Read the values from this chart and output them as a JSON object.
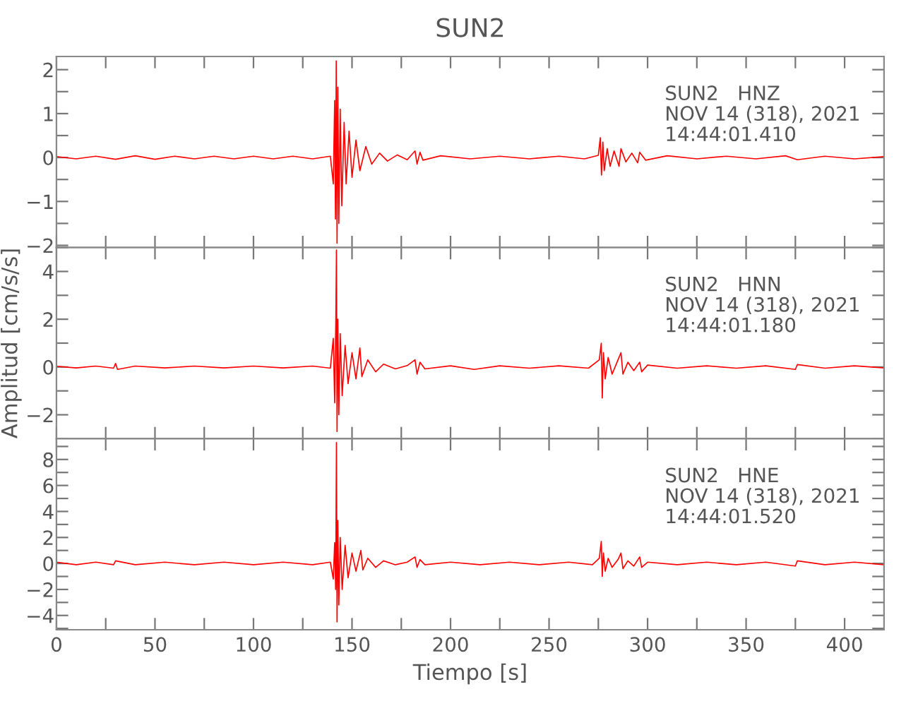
{
  "chart_data": [
    {
      "type": "line",
      "title": "SUN2",
      "annotations": [
        "SUN2   HNZ\nNOV 14 (318), 2021\n14:44:01.410"
      ],
      "tick_labels": "y",
      "marker": "none",
      "line_style": "solid",
      "xlim": [
        0,
        420
      ],
      "xticks": [
        {
          "value": 0,
          "label": null
        },
        {
          "value": 25,
          "label": null
        },
        {
          "value": 50,
          "label": null
        },
        {
          "value": 75,
          "label": null
        },
        {
          "value": 100,
          "label": null
        },
        {
          "value": 125,
          "label": null
        },
        {
          "value": 150,
          "label": null
        },
        {
          "value": 175,
          "label": null
        },
        {
          "value": 200,
          "label": null
        },
        {
          "value": 225,
          "label": null
        },
        {
          "value": 250,
          "label": null
        },
        {
          "value": 275,
          "label": null
        },
        {
          "value": 300,
          "label": null
        },
        {
          "value": 325,
          "label": null
        },
        {
          "value": 350,
          "label": null
        },
        {
          "value": 375,
          "label": null
        },
        {
          "value": 400,
          "label": null
        }
      ],
      "ylim": [
        -2.05,
        2.3
      ],
      "yticks": [
        {
          "value": -2,
          "label": "−2"
        },
        {
          "value": -1.5,
          "label": null
        },
        {
          "value": -1,
          "label": "−1"
        },
        {
          "value": -0.5,
          "label": null
        },
        0,
        {
          "value": 0.5,
          "label": null
        },
        1,
        {
          "value": 1.5,
          "label": null
        },
        2
      ],
      "series": [
        {
          "color": "#ff0000",
          "x": [
            0,
            10,
            20,
            30,
            40,
            50,
            60,
            70,
            80,
            90,
            100,
            110,
            120,
            130,
            139,
            140.5,
            141.2,
            141.6,
            142.0,
            142.4,
            142.8,
            143.3,
            144,
            144.8,
            146,
            147,
            148.5,
            150,
            152,
            154,
            157,
            160,
            164,
            168,
            173,
            178,
            182,
            183,
            184.5,
            186,
            195,
            210,
            225,
            240,
            255,
            268,
            275,
            276,
            276.6,
            277.3,
            278,
            279.5,
            281,
            283,
            285.5,
            286.5,
            289,
            292,
            295,
            296,
            299,
            310,
            325,
            340,
            355,
            370,
            376,
            390,
            405,
            420
          ],
          "values": [
            0.02,
            -0.03,
            0.03,
            -0.04,
            0.04,
            -0.04,
            0.03,
            -0.03,
            0.03,
            -0.03,
            0.03,
            -0.03,
            0.03,
            -0.03,
            0.03,
            -0.6,
            1.3,
            -1.4,
            2.2,
            -1.95,
            1.6,
            -1.5,
            1.1,
            -1.1,
            0.8,
            -0.6,
            0.6,
            -0.45,
            0.4,
            -0.3,
            0.25,
            -0.15,
            0.1,
            -0.08,
            0.06,
            -0.05,
            0.15,
            -0.15,
            0.12,
            -0.06,
            0.04,
            -0.03,
            0.03,
            -0.03,
            0.03,
            -0.03,
            0.05,
            0.45,
            -0.4,
            0.35,
            -0.3,
            0.2,
            -0.2,
            0.15,
            -0.2,
            0.2,
            -0.1,
            0.1,
            -0.12,
            0.12,
            -0.06,
            0.04,
            -0.03,
            0.03,
            -0.03,
            0.04,
            -0.05,
            0.03,
            -0.03,
            0.02
          ]
        }
      ]
    },
    {
      "type": "line",
      "ylabel": "Amplitud [cm/s/s]",
      "annotations": [
        "SUN2   HNN\nNOV 14 (318), 2021\n14:44:01.180"
      ],
      "tick_labels": "y",
      "marker": "none",
      "line_style": "solid",
      "xlim": [
        0,
        420
      ],
      "xticks": [
        {
          "value": 0,
          "label": null
        },
        {
          "value": 25,
          "label": null
        },
        {
          "value": 50,
          "label": null
        },
        {
          "value": 75,
          "label": null
        },
        {
          "value": 100,
          "label": null
        },
        {
          "value": 125,
          "label": null
        },
        {
          "value": 150,
          "label": null
        },
        {
          "value": 175,
          "label": null
        },
        {
          "value": 200,
          "label": null
        },
        {
          "value": 225,
          "label": null
        },
        {
          "value": 250,
          "label": null
        },
        {
          "value": 275,
          "label": null
        },
        {
          "value": 300,
          "label": null
        },
        {
          "value": 325,
          "label": null
        },
        {
          "value": 350,
          "label": null
        },
        {
          "value": 375,
          "label": null
        },
        {
          "value": 400,
          "label": null
        }
      ],
      "ylim": [
        -3,
        5
      ],
      "yticks": [
        {
          "value": -3,
          "label": null
        },
        {
          "value": -2,
          "label": "−2"
        },
        {
          "value": -1,
          "label": null
        },
        0,
        {
          "value": 1,
          "label": null
        },
        2,
        {
          "value": 3,
          "label": null
        },
        4,
        {
          "value": 5,
          "label": null
        }
      ],
      "series": [
        {
          "color": "#ff0000",
          "x": [
            0,
            10,
            20,
            29,
            30,
            31,
            40,
            55,
            70,
            85,
            100,
            115,
            130,
            139,
            140.5,
            141.2,
            141.8,
            142.1,
            142.4,
            142.8,
            143.3,
            144,
            145,
            146.5,
            148,
            150,
            152,
            154,
            155,
            158,
            162,
            166,
            172,
            178,
            182,
            183,
            184.5,
            187,
            200,
            212,
            225,
            240,
            255,
            270,
            275.5,
            276.5,
            277,
            277.6,
            278.5,
            280,
            282,
            285,
            286.5,
            287.5,
            290,
            293,
            296,
            297,
            300,
            315,
            330,
            345,
            360,
            375,
            376,
            390,
            405,
            420
          ],
          "values": [
            0.03,
            -0.04,
            0.04,
            -0.05,
            0.15,
            -0.1,
            0.04,
            -0.04,
            0.04,
            -0.04,
            0.04,
            -0.04,
            0.04,
            -0.05,
            1.2,
            -1.5,
            2.0,
            4.9,
            -2.7,
            2.0,
            -2.0,
            1.4,
            -1.2,
            0.9,
            -0.7,
            0.6,
            -0.5,
            0.8,
            -0.4,
            0.3,
            -0.2,
            0.12,
            -0.08,
            0.06,
            0.3,
            -0.3,
            0.2,
            -0.08,
            0.05,
            -0.1,
            0.05,
            -0.05,
            0.05,
            -0.05,
            0.3,
            1.0,
            -1.3,
            0.6,
            -0.5,
            0.4,
            -0.3,
            0.3,
            0.6,
            -0.3,
            0.2,
            -0.15,
            0.2,
            -0.2,
            0.08,
            -0.05,
            0.05,
            -0.05,
            0.05,
            -0.1,
            0.1,
            -0.05,
            0.05,
            -0.04
          ]
        }
      ]
    },
    {
      "type": "line",
      "xlabel": "Tiempo [s]",
      "annotations": [
        "SUN2   HNE\nNOV 14 (318), 2021\n14:44:01.520"
      ],
      "marker": "none",
      "line_style": "solid",
      "xlim": [
        0,
        420
      ],
      "xticks": [
        0,
        {
          "value": 25,
          "label": null
        },
        50,
        {
          "value": 75,
          "label": null
        },
        100,
        {
          "value": 125,
          "label": null
        },
        150,
        {
          "value": 175,
          "label": null
        },
        200,
        {
          "value": 225,
          "label": null
        },
        250,
        {
          "value": 275,
          "label": null
        },
        300,
        {
          "value": 325,
          "label": null
        },
        350,
        {
          "value": 375,
          "label": null
        },
        400
      ],
      "ylim": [
        -5.1,
        9.6
      ],
      "yticks": [
        {
          "value": -5,
          "label": null
        },
        {
          "value": -4,
          "label": "−4"
        },
        {
          "value": -3,
          "label": null
        },
        {
          "value": -2,
          "label": "−2"
        },
        {
          "value": -1,
          "label": null
        },
        0,
        {
          "value": 1,
          "label": null
        },
        2,
        {
          "value": 3,
          "label": null
        },
        4,
        {
          "value": 5,
          "label": null
        },
        6,
        {
          "value": 7,
          "label": null
        },
        8,
        {
          "value": 9,
          "label": null
        }
      ],
      "series": [
        {
          "color": "#ff0000",
          "x": [
            0,
            10,
            20,
            29,
            30,
            40,
            55,
            70,
            85,
            100,
            115,
            130,
            139,
            140.5,
            141.2,
            141.7,
            142.1,
            142.4,
            142.8,
            143.3,
            144,
            145,
            146.5,
            148,
            150,
            152,
            154.5,
            155.5,
            158,
            162,
            166,
            172,
            178,
            182,
            183,
            184.5,
            187,
            200,
            215,
            230,
            245,
            260,
            272,
            275.5,
            276.5,
            277,
            277.6,
            278.5,
            280,
            282,
            285,
            286.5,
            287.5,
            290,
            293,
            296,
            297,
            300,
            315,
            330,
            345,
            360,
            375,
            376,
            390,
            405,
            420
          ],
          "values": [
            0.1,
            -0.1,
            0.1,
            -0.1,
            0.2,
            -0.1,
            0.1,
            -0.1,
            0.1,
            -0.1,
            0.1,
            -0.1,
            0.1,
            -1.2,
            1.6,
            -2.0,
            9.3,
            -4.5,
            3.3,
            -3.2,
            2.0,
            -2.0,
            1.4,
            -1.1,
            0.8,
            -0.6,
            1.0,
            -0.5,
            0.4,
            -0.3,
            0.2,
            -0.1,
            0.1,
            0.5,
            -0.3,
            0.3,
            -0.1,
            0.1,
            -0.1,
            0.1,
            -0.1,
            0.1,
            -0.1,
            0.4,
            1.7,
            -1.0,
            0.8,
            -0.6,
            0.4,
            -0.3,
            0.3,
            0.8,
            -0.4,
            0.2,
            -0.2,
            0.5,
            -0.3,
            0.1,
            -0.1,
            0.1,
            -0.1,
            0.1,
            -0.2,
            0.2,
            -0.1,
            0.1,
            -0.1
          ]
        }
      ]
    }
  ]
}
